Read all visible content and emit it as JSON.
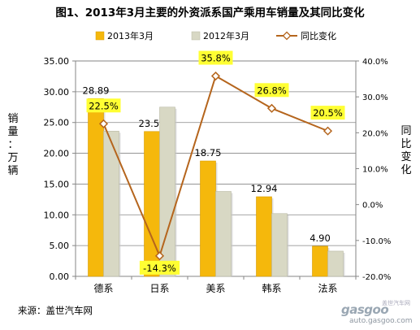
{
  "title": "图1、2013年3月主要的外资派系国产乘用车销量及其同比变化",
  "source": "来源：盖世汽车网",
  "watermark": {
    "logo": "gasgoo",
    "url": "auto.gasgoo.com",
    "seal": "盖世汽车网"
  },
  "chart_data": {
    "type": "bar",
    "categories": [
      "德系",
      "日系",
      "美系",
      "韩系",
      "法系"
    ],
    "series": [
      {
        "name": "2013年3月",
        "type": "bar",
        "axis": "left",
        "color": "#f5b80c",
        "values": [
          28.89,
          23.54,
          18.75,
          12.94,
          4.9
        ],
        "labels": [
          "28.89",
          "23.54",
          "18.75",
          "12.94",
          "4.90"
        ]
      },
      {
        "name": "2012年3月",
        "type": "bar",
        "axis": "left",
        "color": "#d8d8c4",
        "values": [
          23.6,
          27.5,
          13.8,
          10.2,
          4.1
        ]
      },
      {
        "name": "同比变化",
        "type": "line",
        "axis": "right",
        "color": "#b5651d",
        "values": [
          22.5,
          -14.3,
          35.8,
          26.8,
          20.5
        ],
        "labels": [
          "22.5%",
          "-14.3%",
          "35.8%",
          "26.8%",
          "20.5%"
        ]
      }
    ],
    "ylabel": "销量：万辆",
    "y2label": "同比变化",
    "ylim": [
      0,
      35
    ],
    "y_ticks": [
      "0.00",
      "5.00",
      "10.00",
      "15.00",
      "20.00",
      "25.00",
      "30.00",
      "35.00"
    ],
    "y2lim": [
      -20,
      40
    ],
    "y2_ticks": [
      "-20.0%",
      "-10.0%",
      "0.0%",
      "10.0%",
      "20.0%",
      "30.0%",
      "40.0%"
    ],
    "legend_position": "top",
    "grid": true
  }
}
